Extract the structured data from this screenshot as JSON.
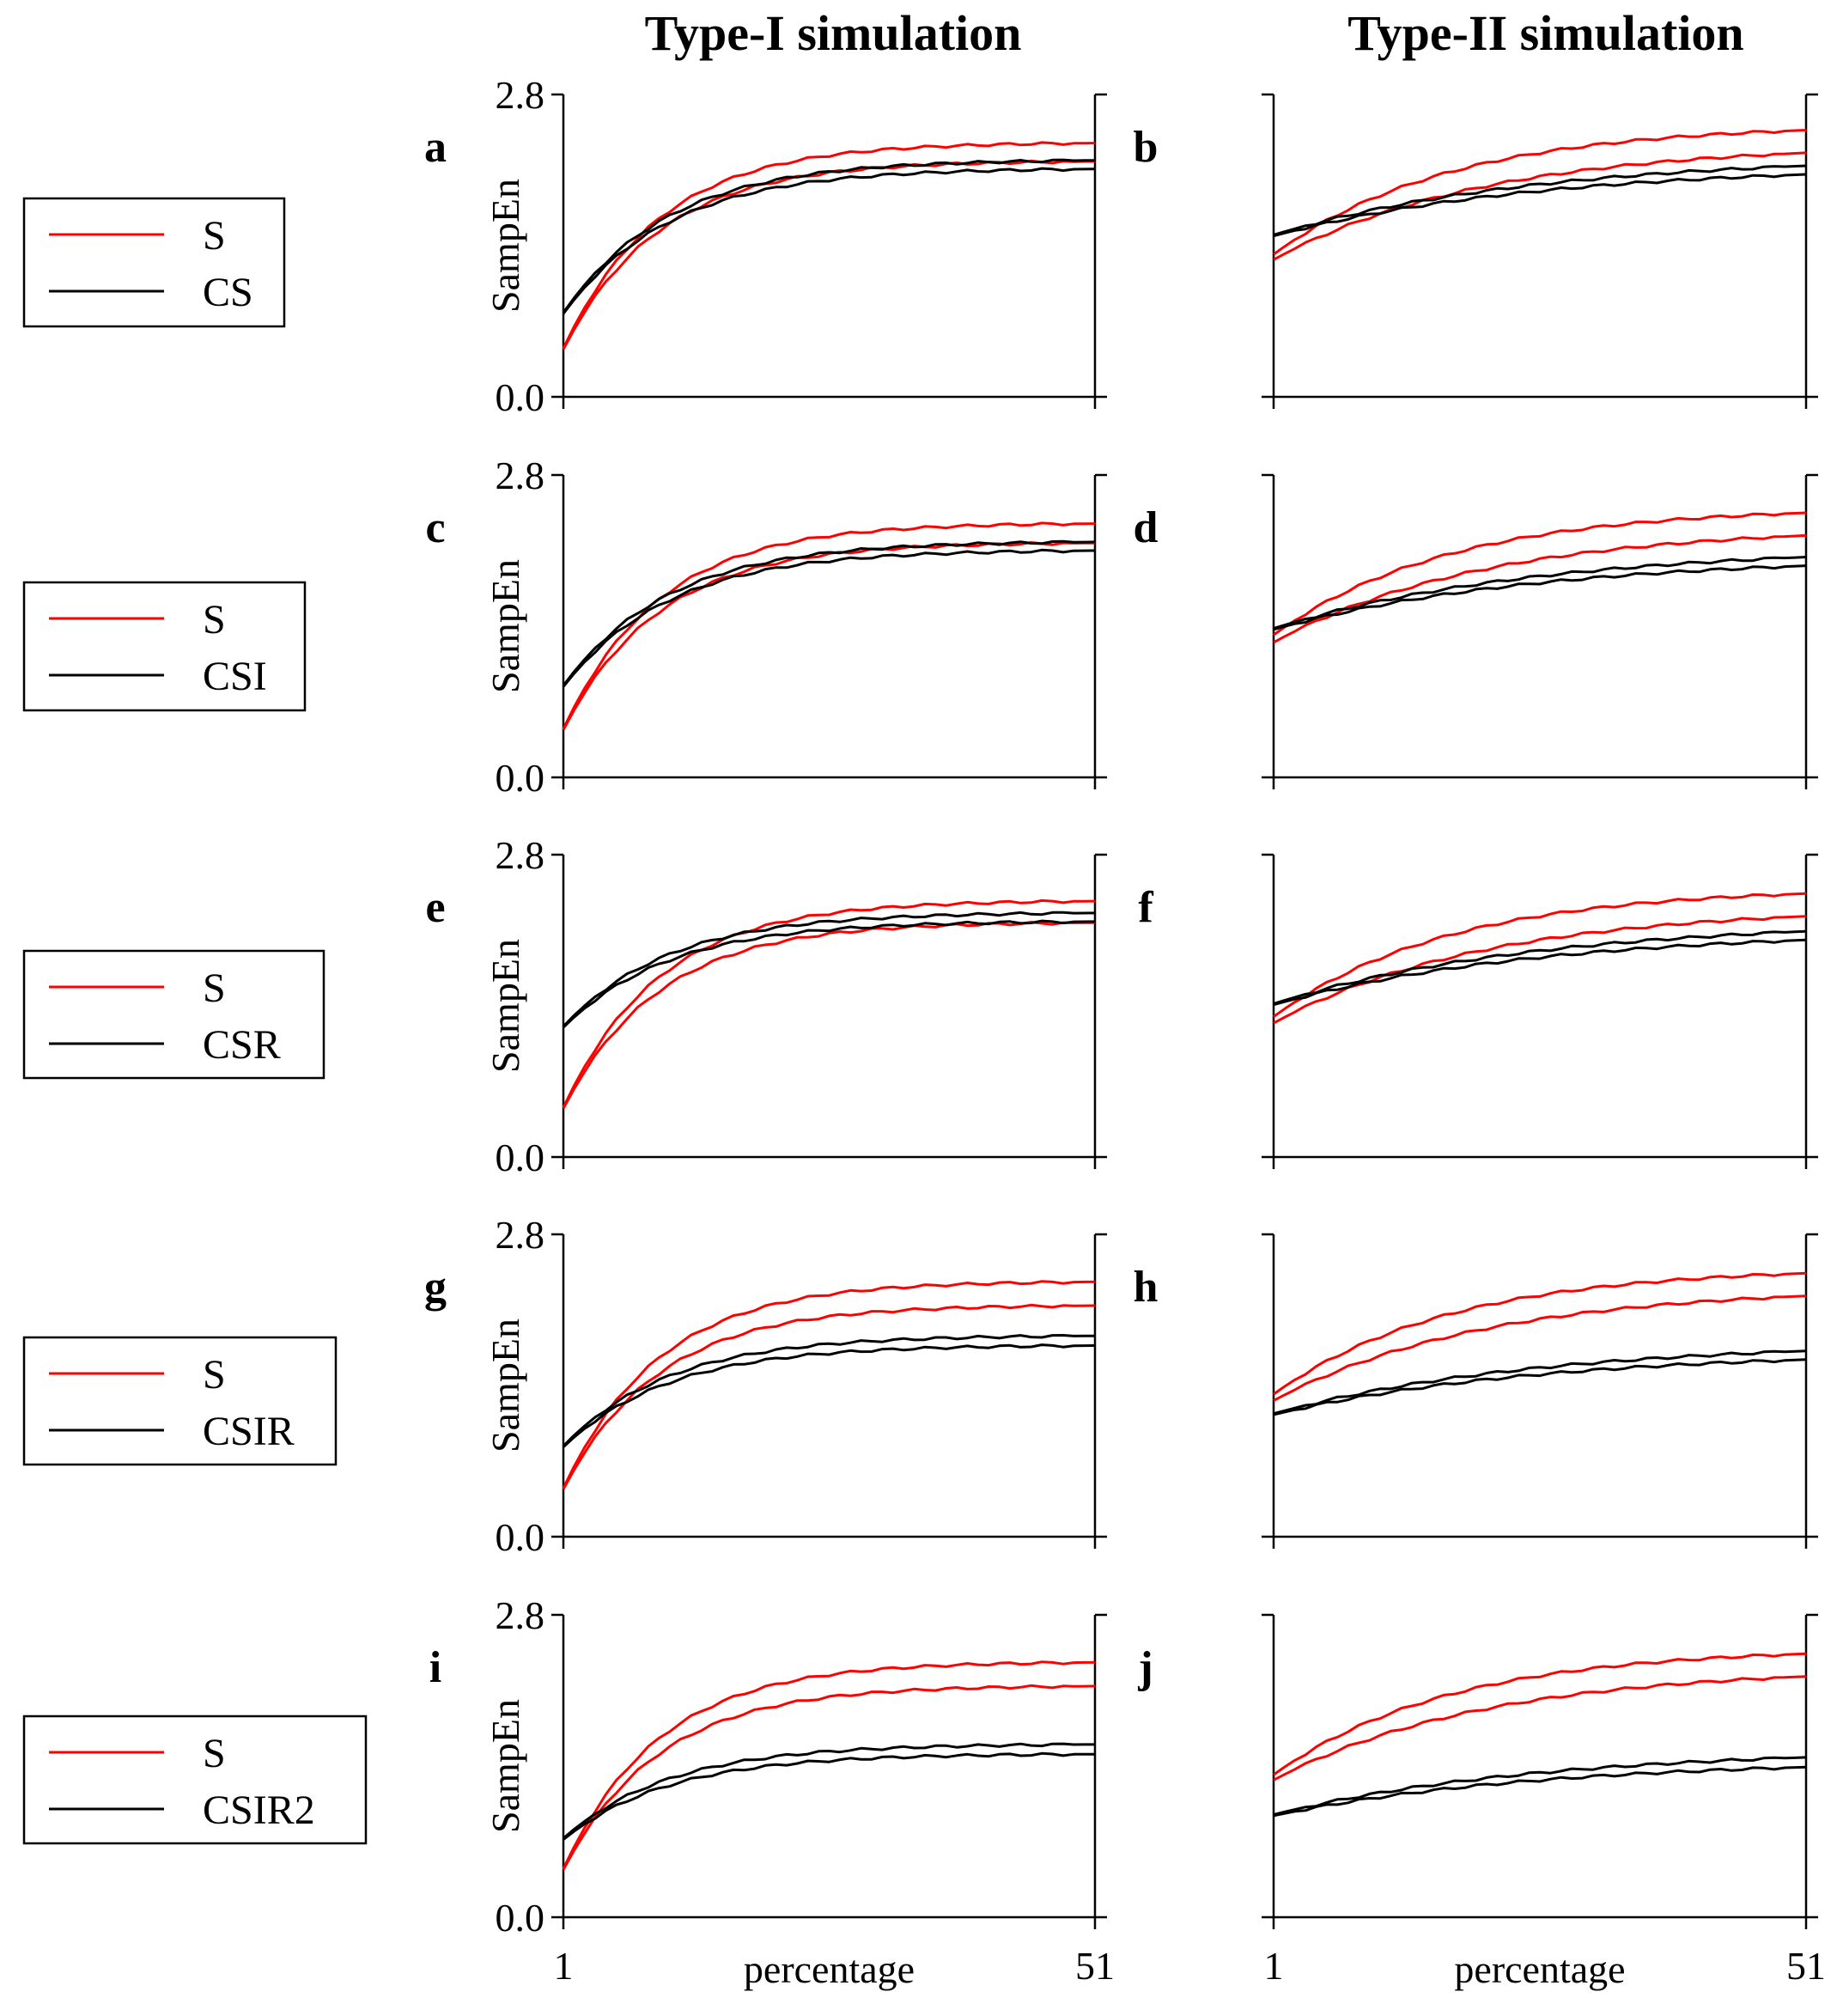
{
  "column_titles": [
    "Type-I simulation",
    "Type-II simulation"
  ],
  "legend_boxes": [
    {
      "entries": [
        {
          "label": "S",
          "color": "#ff0000"
        },
        {
          "label": "CS",
          "color": "#000000"
        }
      ]
    },
    {
      "entries": [
        {
          "label": "S",
          "color": "#ff0000"
        },
        {
          "label": "CSI",
          "color": "#000000"
        }
      ]
    },
    {
      "entries": [
        {
          "label": "S",
          "color": "#ff0000"
        },
        {
          "label": "CSR",
          "color": "#000000"
        }
      ]
    },
    {
      "entries": [
        {
          "label": "S",
          "color": "#ff0000"
        },
        {
          "label": "CSIR",
          "color": "#000000"
        }
      ]
    },
    {
      "entries": [
        {
          "label": "S",
          "color": "#ff0000"
        },
        {
          "label": "CSIR2",
          "color": "#000000"
        }
      ]
    }
  ],
  "axes": {
    "ylabel": "SampEn",
    "xlabel": "percentage",
    "y_ticks": [
      "0.0",
      "2.8"
    ],
    "x_ticks": [
      "1",
      "51"
    ],
    "ylim": [
      0,
      2.8
    ],
    "xlim": [
      1,
      51
    ]
  },
  "colors": {
    "S": "#ff0000",
    "control": "#000000"
  },
  "chart_data": [
    {
      "panel": "a",
      "type": "line",
      "title": "",
      "xlabel": "",
      "ylabel": "SampEn",
      "ylim": [
        0,
        2.8
      ],
      "xlim": [
        1,
        51
      ],
      "series": [
        {
          "color": "#ff0000",
          "start": 0.45,
          "end": 2.35,
          "shape": 0.11
        },
        {
          "color": "#ff0000",
          "start": 0.44,
          "end": 2.18,
          "shape": 0.11
        },
        {
          "color": "#000000",
          "start": 0.78,
          "end": 2.19,
          "shape": 0.1
        },
        {
          "color": "#000000",
          "start": 0.77,
          "end": 2.11,
          "shape": 0.1
        }
      ]
    },
    {
      "panel": "b",
      "type": "line",
      "title": "",
      "xlabel": "",
      "ylabel": "",
      "ylim": [
        0,
        2.8
      ],
      "xlim": [
        1,
        51
      ],
      "series": [
        {
          "color": "#ff0000",
          "start": 1.32,
          "end": 2.47,
          "shape": 0.06
        },
        {
          "color": "#ff0000",
          "start": 1.27,
          "end": 2.26,
          "shape": 0.05
        },
        {
          "color": "#000000",
          "start": 1.5,
          "end": 2.14,
          "shape": 0.04
        },
        {
          "color": "#000000",
          "start": 1.49,
          "end": 2.06,
          "shape": 0.04
        }
      ]
    },
    {
      "panel": "c",
      "type": "line",
      "title": "",
      "xlabel": "",
      "ylabel": "SampEn",
      "ylim": [
        0,
        2.8
      ],
      "xlim": [
        1,
        51
      ],
      "series": [
        {
          "color": "#ff0000",
          "start": 0.45,
          "end": 2.35,
          "shape": 0.11
        },
        {
          "color": "#ff0000",
          "start": 0.44,
          "end": 2.17,
          "shape": 0.11
        },
        {
          "color": "#000000",
          "start": 0.85,
          "end": 2.18,
          "shape": 0.1
        },
        {
          "color": "#000000",
          "start": 0.84,
          "end": 2.1,
          "shape": 0.1
        }
      ]
    },
    {
      "panel": "d",
      "type": "line",
      "title": "",
      "xlabel": "",
      "ylabel": "",
      "ylim": [
        0,
        2.8
      ],
      "xlim": [
        1,
        51
      ],
      "series": [
        {
          "color": "#ff0000",
          "start": 1.32,
          "end": 2.45,
          "shape": 0.06
        },
        {
          "color": "#ff0000",
          "start": 1.25,
          "end": 2.24,
          "shape": 0.05
        },
        {
          "color": "#000000",
          "start": 1.38,
          "end": 2.04,
          "shape": 0.04
        },
        {
          "color": "#000000",
          "start": 1.37,
          "end": 1.96,
          "shape": 0.04
        }
      ]
    },
    {
      "panel": "e",
      "type": "line",
      "title": "",
      "xlabel": "",
      "ylabel": "SampEn",
      "ylim": [
        0,
        2.8
      ],
      "xlim": [
        1,
        51
      ],
      "series": [
        {
          "color": "#ff0000",
          "start": 0.46,
          "end": 2.37,
          "shape": 0.11
        },
        {
          "color": "#ff0000",
          "start": 0.45,
          "end": 2.17,
          "shape": 0.11
        },
        {
          "color": "#000000",
          "start": 1.21,
          "end": 2.26,
          "shape": 0.1
        },
        {
          "color": "#000000",
          "start": 1.2,
          "end": 2.18,
          "shape": 0.1
        }
      ]
    },
    {
      "panel": "f",
      "type": "line",
      "title": "",
      "xlabel": "",
      "ylabel": "",
      "ylim": [
        0,
        2.8
      ],
      "xlim": [
        1,
        51
      ],
      "series": [
        {
          "color": "#ff0000",
          "start": 1.3,
          "end": 2.44,
          "shape": 0.06
        },
        {
          "color": "#ff0000",
          "start": 1.24,
          "end": 2.23,
          "shape": 0.05
        },
        {
          "color": "#000000",
          "start": 1.42,
          "end": 2.09,
          "shape": 0.04
        },
        {
          "color": "#000000",
          "start": 1.41,
          "end": 2.01,
          "shape": 0.04
        }
      ]
    },
    {
      "panel": "g",
      "type": "line",
      "title": "",
      "xlabel": "",
      "ylabel": "SampEn",
      "ylim": [
        0,
        2.8
      ],
      "xlim": [
        1,
        51
      ],
      "series": [
        {
          "color": "#ff0000",
          "start": 0.45,
          "end": 2.36,
          "shape": 0.11
        },
        {
          "color": "#ff0000",
          "start": 0.44,
          "end": 2.14,
          "shape": 0.11
        },
        {
          "color": "#000000",
          "start": 0.84,
          "end": 1.86,
          "shape": 0.1
        },
        {
          "color": "#000000",
          "start": 0.83,
          "end": 1.77,
          "shape": 0.1
        }
      ]
    },
    {
      "panel": "h",
      "type": "line",
      "title": "",
      "xlabel": "",
      "ylabel": "",
      "ylim": [
        0,
        2.8
      ],
      "xlim": [
        1,
        51
      ],
      "series": [
        {
          "color": "#ff0000",
          "start": 1.32,
          "end": 2.44,
          "shape": 0.06
        },
        {
          "color": "#ff0000",
          "start": 1.26,
          "end": 2.23,
          "shape": 0.05
        },
        {
          "color": "#000000",
          "start": 1.14,
          "end": 1.72,
          "shape": 0.04
        },
        {
          "color": "#000000",
          "start": 1.13,
          "end": 1.64,
          "shape": 0.04
        }
      ]
    },
    {
      "panel": "i",
      "type": "line",
      "title": "",
      "xlabel": "percentage",
      "ylabel": "SampEn",
      "ylim": [
        0,
        2.8
      ],
      "xlim": [
        1,
        51
      ],
      "series": [
        {
          "color": "#ff0000",
          "start": 0.45,
          "end": 2.36,
          "shape": 0.11
        },
        {
          "color": "#ff0000",
          "start": 0.44,
          "end": 2.14,
          "shape": 0.11
        },
        {
          "color": "#000000",
          "start": 0.73,
          "end": 1.6,
          "shape": 0.1
        },
        {
          "color": "#000000",
          "start": 0.72,
          "end": 1.51,
          "shape": 0.1
        }
      ]
    },
    {
      "panel": "j",
      "type": "line",
      "title": "",
      "xlabel": "percentage",
      "ylabel": "",
      "ylim": [
        0,
        2.8
      ],
      "xlim": [
        1,
        51
      ],
      "series": [
        {
          "color": "#ff0000",
          "start": 1.32,
          "end": 2.44,
          "shape": 0.06
        },
        {
          "color": "#ff0000",
          "start": 1.27,
          "end": 2.23,
          "shape": 0.05
        },
        {
          "color": "#000000",
          "start": 0.95,
          "end": 1.48,
          "shape": 0.04
        },
        {
          "color": "#000000",
          "start": 0.94,
          "end": 1.39,
          "shape": 0.04
        }
      ]
    }
  ]
}
